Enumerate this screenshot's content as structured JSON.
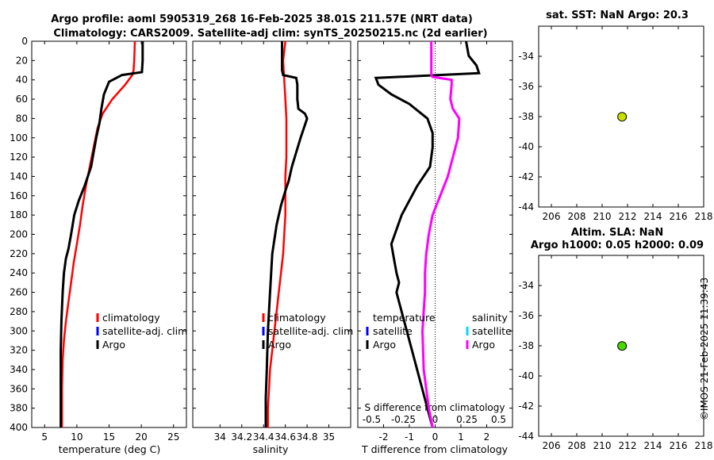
{
  "title": {
    "line1": "Argo profile: aoml 5905319_268 16-Feb-2025 38.01S 211.57E (NRT data)",
    "line2": "Climatology: CARS2009. Satellite-adj clim: synTS_20250215.nc (2d earlier)"
  },
  "colors": {
    "clim": "#ff0000",
    "sat": "#0000ff",
    "argo": "#000000",
    "sal_argo": "#ff00ff",
    "sal_sat": "#00d8ff",
    "dot1": "#c8e000",
    "dot2": "#48d800"
  },
  "depth_ticks": [
    "0",
    "20",
    "40",
    "60",
    "80",
    "100",
    "120",
    "140",
    "160",
    "180",
    "200",
    "220",
    "240",
    "260",
    "280",
    "300",
    "320",
    "340",
    "360",
    "380",
    "400"
  ],
  "chart_data": [
    {
      "type": "line",
      "name": "temperature",
      "xlabel": "temperature (deg C)",
      "xlim": [
        3,
        27
      ],
      "ylim": [
        0,
        400
      ],
      "xtick_labels": [
        "5",
        "10",
        "15",
        "20",
        "25"
      ],
      "legend": [
        "climatology",
        "satellite-adj. clim",
        "Argo"
      ],
      "series": [
        {
          "name": "climatology",
          "x": [
            19.0,
            18.9,
            18.8,
            18.6,
            17.5,
            15.5,
            14.0,
            13.2,
            12.6,
            12.0,
            11.4,
            10.9,
            10.5,
            10.0,
            9.5,
            9.1,
            8.7,
            8.3,
            8.0,
            7.8,
            7.7,
            7.7
          ],
          "y": [
            0,
            20,
            30,
            35,
            45,
            60,
            75,
            90,
            110,
            130,
            150,
            170,
            190,
            210,
            230,
            250,
            270,
            290,
            310,
            330,
            360,
            400
          ]
        },
        {
          "name": "Argo",
          "x": [
            20.2,
            20.2,
            20.1,
            17.0,
            15.0,
            14.2,
            13.8,
            13.5,
            13.0,
            12.6,
            12.2,
            11.2,
            10.3,
            9.6,
            9.1,
            8.7,
            8.3,
            8.0,
            7.8,
            7.6,
            7.5,
            7.5,
            7.5
          ],
          "y": [
            0,
            20,
            32,
            35,
            42,
            55,
            70,
            85,
            100,
            115,
            130,
            150,
            165,
            180,
            200,
            215,
            225,
            240,
            260,
            290,
            320,
            360,
            400
          ]
        }
      ]
    },
    {
      "type": "line",
      "name": "salinity",
      "xlabel": "salinity",
      "xlim": [
        33.75,
        35.2
      ],
      "ylim": [
        0,
        400
      ],
      "xtick_labels": [
        "34",
        "34.2",
        "34.4",
        "34.6",
        "34.8",
        "35"
      ],
      "legend": [
        "climatology",
        "satellite-adj. clim",
        "Argo"
      ],
      "series": [
        {
          "name": "climatology",
          "x": [
            34.6,
            34.58,
            34.59,
            34.6,
            34.61,
            34.61,
            34.61,
            34.6,
            34.6,
            34.6,
            34.59,
            34.58,
            34.56,
            34.54,
            34.52,
            34.5,
            34.48,
            34.46,
            34.45,
            34.44,
            34.44
          ],
          "y": [
            0,
            20,
            40,
            60,
            80,
            100,
            120,
            140,
            160,
            180,
            200,
            220,
            240,
            260,
            280,
            300,
            320,
            340,
            360,
            380,
            400
          ]
        },
        {
          "name": "Argo",
          "x": [
            34.57,
            34.57,
            34.57,
            34.58,
            34.7,
            34.71,
            34.71,
            34.72,
            34.78,
            34.8,
            34.77,
            34.74,
            34.7,
            34.66,
            34.63,
            34.6,
            34.56,
            34.52,
            34.48,
            34.46,
            34.44,
            34.43,
            34.42,
            34.42
          ],
          "y": [
            0,
            20,
            30,
            35,
            38,
            45,
            60,
            70,
            75,
            80,
            90,
            100,
            115,
            130,
            145,
            155,
            170,
            190,
            220,
            260,
            300,
            340,
            370,
            400
          ]
        }
      ]
    },
    {
      "type": "line",
      "name": "difference from climatology",
      "xlabel": "T difference from climatology",
      "xlabel2": "S difference from climatology",
      "xlim": [
        -3,
        3
      ],
      "ylim": [
        0,
        400
      ],
      "xtick_labels": [
        "-2",
        "-1",
        "0",
        "1",
        "2"
      ],
      "xtick_labels2": [
        "-0.5",
        "-0.25",
        "0",
        "0.25",
        "0.5"
      ],
      "legend_t_title": "temperature",
      "legend_s_title": "salinity",
      "legend_t": [
        "satellite",
        "Argo"
      ],
      "legend_s": [
        "satellite",
        "Argo"
      ],
      "series": [
        {
          "name": "T difference Argo",
          "x": [
            1.2,
            1.3,
            1.6,
            1.7,
            -2.3,
            -2.2,
            -1.7,
            -1.0,
            -0.3,
            -0.1,
            -0.1,
            -0.2,
            -0.7,
            -1.0,
            -1.3,
            -1.5,
            -1.7,
            -1.6,
            -1.5,
            -1.4,
            -1.5,
            -1.4,
            -1.2,
            -1.0,
            -0.8,
            -0.6,
            -0.4,
            -0.2,
            -0.1
          ],
          "y": [
            0,
            15,
            25,
            33,
            38,
            45,
            55,
            65,
            80,
            95,
            110,
            130,
            150,
            165,
            180,
            195,
            210,
            225,
            240,
            250,
            260,
            270,
            290,
            310,
            330,
            350,
            370,
            390,
            400
          ]
        },
        {
          "name": "S difference Argo",
          "x": [
            -0.03,
            -0.03,
            -0.03,
            -0.02,
            0.13,
            0.13,
            0.12,
            0.14,
            0.19,
            0.18,
            0.14,
            0.1,
            0.04,
            -0.02,
            -0.05,
            -0.07,
            -0.08,
            -0.08,
            -0.09,
            -0.1,
            -0.09,
            -0.05,
            -0.02
          ],
          "y": [
            0,
            20,
            35,
            37,
            40,
            45,
            60,
            70,
            80,
            100,
            120,
            140,
            160,
            180,
            200,
            220,
            240,
            260,
            280,
            300,
            340,
            380,
            400
          ]
        }
      ]
    },
    {
      "type": "scatter",
      "name": "sat SST map",
      "title": "sat. SST: NaN Argo: 20.3",
      "xlim": [
        205,
        218
      ],
      "ylim": [
        -44,
        -32
      ],
      "xtick_labels": [
        "206",
        "208",
        "210",
        "212",
        "214",
        "216",
        "218"
      ],
      "ytick_labels": [
        "-34",
        "-36",
        "-38",
        "-40",
        "-42",
        "-44"
      ],
      "points": [
        {
          "x": 211.57,
          "y": -38.01
        }
      ]
    },
    {
      "type": "scatter",
      "name": "altimetry map",
      "title": "Altim. SLA: NaN",
      "subtitle": "Argo h1000: 0.05 h2000: 0.09",
      "xlim": [
        205,
        218
      ],
      "ylim": [
        -44,
        -32
      ],
      "xtick_labels": [
        "206",
        "208",
        "210",
        "212",
        "214",
        "216",
        "218"
      ],
      "ytick_labels": [
        "-34",
        "-36",
        "-38",
        "-40",
        "-42",
        "-44"
      ],
      "points": [
        {
          "x": 211.57,
          "y": -38.01
        }
      ]
    }
  ],
  "stamp": "©IMOS 21-Feb-2025 11:39:43"
}
